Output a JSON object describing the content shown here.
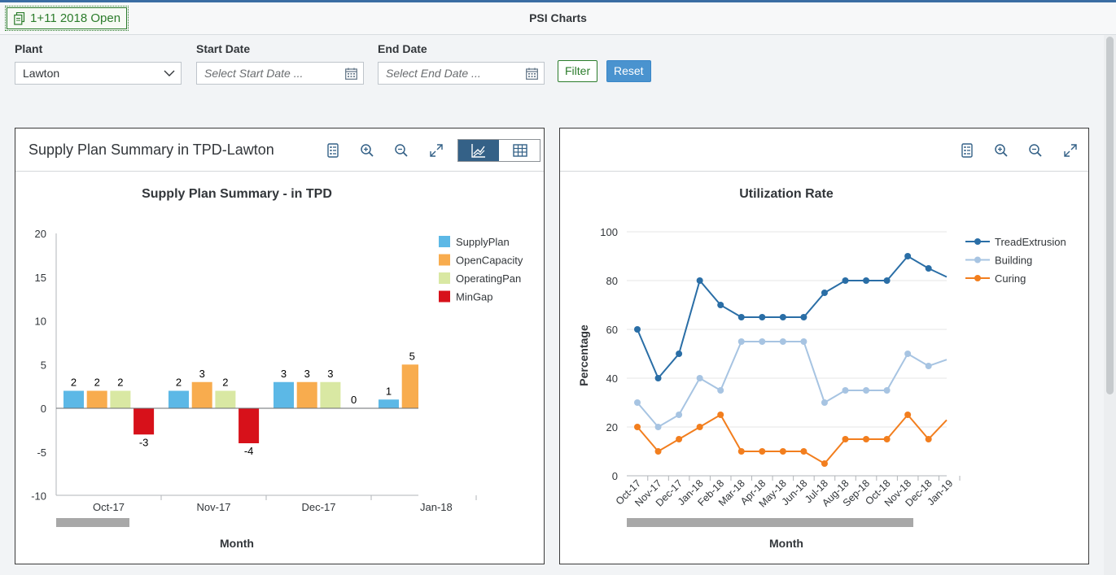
{
  "header": {
    "status_button": "1+11 2018 Open",
    "title": "PSI Charts"
  },
  "filters": {
    "plant_label": "Plant",
    "plant_value": "Lawton",
    "start_label": "Start Date",
    "start_placeholder": "Select Start Date ...",
    "end_label": "End Date",
    "end_placeholder": "Select End Date ...",
    "filter_button": "Filter",
    "reset_button": "Reset"
  },
  "panels": {
    "supply": {
      "title": "Supply Plan Summary in TPD-Lawton"
    },
    "utilization": {
      "title": ""
    }
  },
  "icons": [
    "document-icon",
    "chevron-down-icon",
    "calendar-icon",
    "legend-list-icon",
    "zoom-in-icon",
    "zoom-out-icon",
    "fullscreen-icon",
    "chart-view-icon",
    "table-view-icon"
  ],
  "colors": {
    "accent": "#3a6da3",
    "SupplyPlan": "#5cb8e6",
    "OpenCapacity": "#f8ac4e",
    "OperatingPan": "#d9e8a3",
    "MinGap": "#d7111a",
    "TreadExtrusion": "#2a6ea6",
    "Building": "#a7c4e2",
    "Curing": "#f27e1e"
  },
  "chart_data": [
    {
      "type": "bar",
      "title": "Supply Plan Summary - in TPD",
      "xlabel": "Month",
      "ylabel": "",
      "categories": [
        "Oct-17",
        "Nov-17",
        "Dec-17",
        "Jan-18"
      ],
      "series": [
        {
          "name": "SupplyPlan",
          "values": [
            2,
            2,
            3,
            1
          ]
        },
        {
          "name": "OpenCapacity",
          "values": [
            2,
            3,
            3,
            5
          ]
        },
        {
          "name": "OperatingPan",
          "values": [
            2,
            2,
            3,
            null
          ]
        },
        {
          "name": "MinGap",
          "values": [
            -3,
            -4,
            0,
            null
          ]
        }
      ],
      "ylim": [
        -10,
        20
      ],
      "yticks": [
        20,
        15,
        10,
        5,
        0,
        -5,
        -10
      ],
      "legend": "right",
      "data_labels": true,
      "grid": false
    },
    {
      "type": "line",
      "title": "Utilization Rate",
      "xlabel": "Month",
      "ylabel": "Percentage",
      "categories": [
        "Oct-17",
        "Nov-17",
        "Dec-17",
        "Jan-18",
        "Feb-18",
        "Mar-18",
        "Apr-18",
        "May-18",
        "Jun-18",
        "Jul-18",
        "Aug-18",
        "Sep-18",
        "Oct-18",
        "Nov-18",
        "Dec-18",
        "Jan-19"
      ],
      "series": [
        {
          "name": "TreadExtrusion",
          "values": [
            60,
            40,
            50,
            80,
            70,
            65,
            65,
            65,
            65,
            75,
            80,
            80,
            80,
            90,
            85,
            81
          ]
        },
        {
          "name": "Building",
          "values": [
            30,
            20,
            25,
            40,
            35,
            55,
            55,
            55,
            55,
            30,
            35,
            35,
            35,
            50,
            45,
            48
          ]
        },
        {
          "name": "Curing",
          "values": [
            20,
            10,
            15,
            20,
            25,
            10,
            10,
            10,
            10,
            5,
            15,
            15,
            15,
            25,
            15,
            24
          ]
        }
      ],
      "ylim": [
        0,
        100
      ],
      "yticks": [
        100,
        80,
        60,
        40,
        20,
        0
      ],
      "legend": "right",
      "grid": true
    }
  ]
}
